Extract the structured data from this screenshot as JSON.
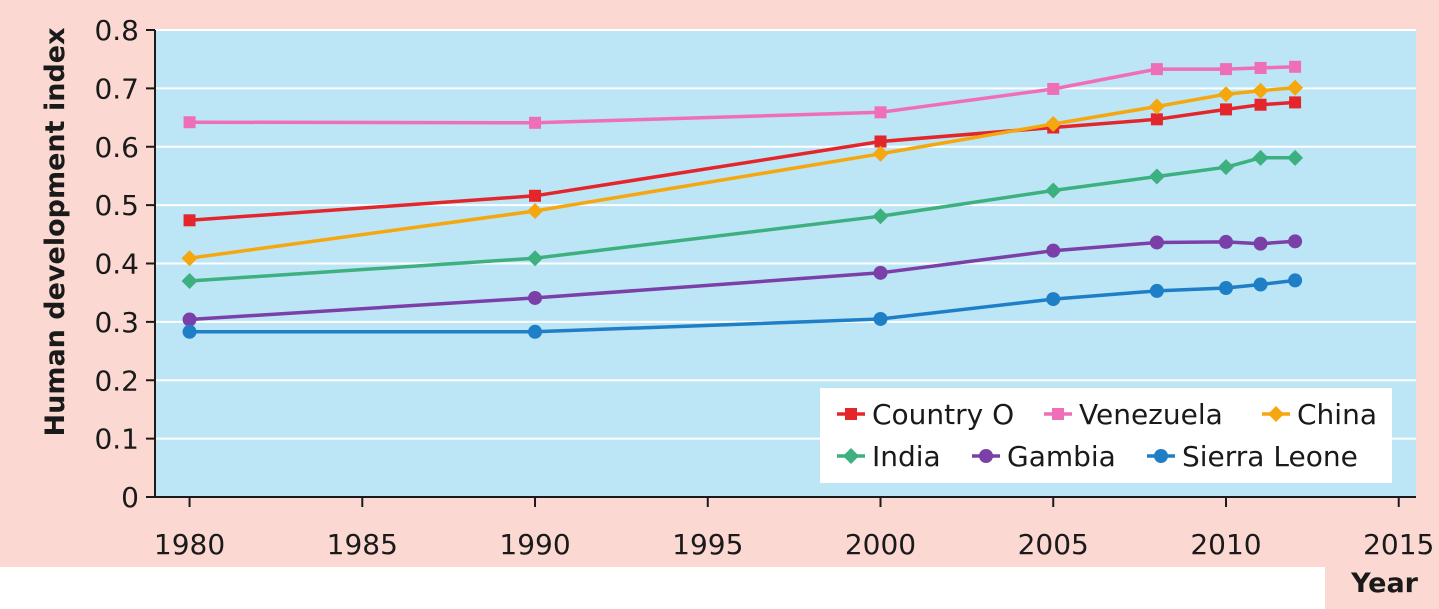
{
  "chart_data": {
    "type": "line",
    "title": "",
    "xlabel": "Year",
    "ylabel": "Human development index",
    "xlim": [
      1979,
      2015.5
    ],
    "ylim": [
      0,
      0.8
    ],
    "x_ticks": [
      "1980",
      "1985",
      "1990",
      "1995",
      "2000",
      "2005",
      "2010",
      "2015"
    ],
    "y_ticks": [
      "0",
      "0.1",
      "0.2",
      "0.3",
      "0.4",
      "0.5",
      "0.6",
      "0.7",
      "0.8"
    ],
    "grid": "horizontal",
    "legend_position": "bottom-right",
    "x": [
      1980,
      1990,
      2000,
      2005,
      2008,
      2010,
      2011,
      2012
    ],
    "series": [
      {
        "name": "Country O",
        "color": "#e3262b",
        "marker": "square",
        "values": [
          0.474,
          0.516,
          0.609,
          0.633,
          0.647,
          0.664,
          0.672,
          0.676
        ]
      },
      {
        "name": "Venezuela",
        "color": "#ef6fb7",
        "marker": "square",
        "values": [
          0.642,
          0.641,
          0.659,
          0.699,
          0.733,
          0.733,
          0.735,
          0.737
        ]
      },
      {
        "name": "China",
        "color": "#f5a70f",
        "marker": "diamond",
        "values": [
          0.409,
          0.49,
          0.588,
          0.639,
          0.669,
          0.69,
          0.696,
          0.701
        ]
      },
      {
        "name": "India",
        "color": "#3db080",
        "marker": "diamond",
        "values": [
          0.37,
          0.409,
          0.481,
          0.525,
          0.549,
          0.565,
          0.581,
          0.581
        ]
      },
      {
        "name": "Gambia",
        "color": "#7b3fa8",
        "marker": "circle",
        "values": [
          0.304,
          0.341,
          0.384,
          0.422,
          0.436,
          0.437,
          0.434,
          0.438
        ]
      },
      {
        "name": "Sierra Leone",
        "color": "#1e7fc6",
        "marker": "circle",
        "values": [
          0.283,
          0.283,
          0.305,
          0.339,
          0.353,
          0.358,
          0.364,
          0.371
        ]
      }
    ]
  },
  "colors": {
    "frame_background": "#fbd9d2",
    "plot_background": "#bce5f6",
    "gridline": "#ffffff",
    "axis": "#1a1a1a",
    "legend_background": "#ffffff"
  }
}
